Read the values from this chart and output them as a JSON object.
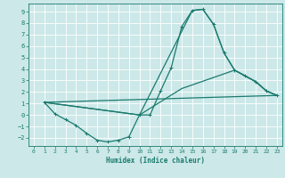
{
  "xlabel": "Humidex (Indice chaleur)",
  "bg_color": "#cce8e8",
  "grid_color": "#ffffff",
  "line_color": "#1a7a6e",
  "xlim": [
    -0.5,
    23.5
  ],
  "ylim": [
    -2.7,
    9.7
  ],
  "xticks": [
    0,
    1,
    2,
    3,
    4,
    5,
    6,
    7,
    8,
    9,
    10,
    11,
    12,
    13,
    14,
    15,
    16,
    17,
    18,
    19,
    20,
    21,
    22,
    23
  ],
  "yticks": [
    -2,
    -1,
    0,
    1,
    2,
    3,
    4,
    5,
    6,
    7,
    8,
    9
  ],
  "main_x": [
    1,
    2,
    3,
    4,
    5,
    6,
    7,
    8,
    9,
    10,
    11,
    12,
    13,
    14,
    15,
    16,
    17,
    18,
    19,
    20,
    21,
    22,
    23
  ],
  "main_y": [
    1.1,
    0.1,
    -0.4,
    -0.9,
    -1.6,
    -2.2,
    -2.35,
    -2.2,
    -1.9,
    0.0,
    0.0,
    2.1,
    4.1,
    7.7,
    9.1,
    9.2,
    7.9,
    5.4,
    3.9,
    3.4,
    2.9,
    2.1,
    1.7
  ],
  "line2_x": [
    1,
    10,
    15,
    16,
    17,
    18,
    19,
    20,
    21,
    22,
    23
  ],
  "line2_y": [
    1.1,
    0.0,
    9.1,
    9.2,
    7.9,
    5.4,
    3.9,
    3.4,
    2.9,
    2.1,
    1.7
  ],
  "line3_x": [
    1,
    10,
    14,
    19,
    20,
    21,
    22,
    23
  ],
  "line3_y": [
    1.1,
    0.0,
    2.3,
    3.9,
    3.4,
    2.9,
    2.1,
    1.7
  ],
  "line4_x": [
    1,
    23
  ],
  "line4_y": [
    1.1,
    1.7
  ]
}
